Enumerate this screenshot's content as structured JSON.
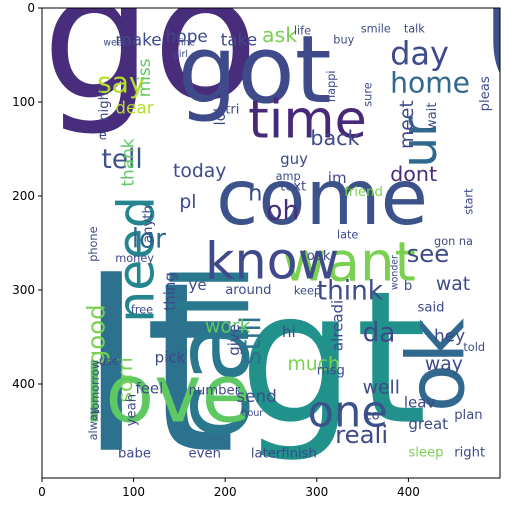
{
  "chart_data": {
    "type": "wordcloud",
    "title": "",
    "xlabel": "",
    "ylabel": "",
    "xlim": [
      0,
      500
    ],
    "ylim": [
      500,
      0
    ],
    "x_ticks": [
      0,
      100,
      200,
      300,
      400
    ],
    "y_ticks": [
      0,
      100,
      200,
      300,
      400
    ],
    "background": "#ffffff",
    "palette": "viridis",
    "words": [
      {
        "text": "u",
        "x": 470,
        "y": 90,
        "size": 260,
        "color": "#3b528b",
        "rotate": 0
      },
      {
        "text": "go",
        "x": 0,
        "y": 95,
        "size": 185,
        "color": "#472d7b",
        "rotate": 0
      },
      {
        "text": "lt",
        "x": 40,
        "y": 470,
        "size": 250,
        "color": "#2c718e",
        "rotate": 0
      },
      {
        "text": "gt",
        "x": 215,
        "y": 440,
        "size": 195,
        "color": "#21918c",
        "rotate": 0
      },
      {
        "text": "call",
        "x": 225,
        "y": 460,
        "size": 110,
        "color": "#2a788e",
        "rotate": -90
      },
      {
        "text": "got",
        "x": 148,
        "y": 100,
        "size": 100,
        "color": "#3e4a89",
        "rotate": 0
      },
      {
        "text": "come",
        "x": 190,
        "y": 230,
        "size": 82,
        "color": "#3b528b",
        "rotate": 0
      },
      {
        "text": "love",
        "x": 45,
        "y": 440,
        "size": 85,
        "color": "#5ec962",
        "rotate": 0
      },
      {
        "text": "want",
        "x": 262,
        "y": 290,
        "size": 58,
        "color": "#7ad151",
        "rotate": 0
      },
      {
        "text": "ok",
        "x": 460,
        "y": 430,
        "size": 84,
        "color": "#31688e",
        "rotate": -90
      },
      {
        "text": "know",
        "x": 178,
        "y": 288,
        "size": 54,
        "color": "#3e4a89",
        "rotate": 0
      },
      {
        "text": "time",
        "x": 225,
        "y": 138,
        "size": 56,
        "color": "#482878",
        "rotate": 0
      },
      {
        "text": "need",
        "x": 122,
        "y": 335,
        "size": 54,
        "color": "#25858e",
        "rotate": -90
      },
      {
        "text": "one",
        "x": 290,
        "y": 445,
        "size": 46,
        "color": "#3b528b",
        "rotate": 0
      },
      {
        "text": "ur",
        "x": 430,
        "y": 170,
        "size": 52,
        "color": "#31688e",
        "rotate": -90
      },
      {
        "text": "day",
        "x": 380,
        "y": 60,
        "size": 34,
        "color": "#3e4a89",
        "rotate": 0
      },
      {
        "text": "home",
        "x": 380,
        "y": 90,
        "size": 30,
        "color": "#31688e",
        "rotate": 0
      },
      {
        "text": "say",
        "x": 60,
        "y": 90,
        "size": 30,
        "color": "#b5de2b",
        "rotate": 0
      },
      {
        "text": "tell",
        "x": 65,
        "y": 170,
        "size": 28,
        "color": "#3b528b",
        "rotate": 0
      },
      {
        "text": "think",
        "x": 300,
        "y": 310,
        "size": 28,
        "color": "#3e4a89",
        "rotate": 0
      },
      {
        "text": "see",
        "x": 398,
        "y": 270,
        "size": 26,
        "color": "#3e4a89",
        "rotate": 0
      },
      {
        "text": "lor",
        "x": 98,
        "y": 255,
        "size": 28,
        "color": "#31688e",
        "rotate": 0
      },
      {
        "text": "oh",
        "x": 245,
        "y": 225,
        "size": 28,
        "color": "#472d7b",
        "rotate": 0
      },
      {
        "text": "still",
        "x": 238,
        "y": 380,
        "size": 30,
        "color": "#2c718e",
        "rotate": -90
      },
      {
        "text": "da",
        "x": 350,
        "y": 355,
        "size": 28,
        "color": "#3e4a89",
        "rotate": 0
      },
      {
        "text": "good",
        "x": 68,
        "y": 380,
        "size": 26,
        "color": "#7ad151",
        "rotate": -90
      },
      {
        "text": "reali",
        "x": 320,
        "y": 463,
        "size": 26,
        "color": "#3e4a89",
        "rotate": 0
      },
      {
        "text": "sorri",
        "x": 98,
        "y": 420,
        "size": 22,
        "color": "#7ad151",
        "rotate": -90
      },
      {
        "text": "back",
        "x": 293,
        "y": 146,
        "size": 22,
        "color": "#3e4a89",
        "rotate": 0
      },
      {
        "text": "today",
        "x": 143,
        "y": 180,
        "size": 20,
        "color": "#3e4a89",
        "rotate": 0
      },
      {
        "text": "dont",
        "x": 380,
        "y": 184,
        "size": 22,
        "color": "#472d7b",
        "rotate": 0
      },
      {
        "text": "meet",
        "x": 405,
        "y": 150,
        "size": 20,
        "color": "#3e4a89",
        "rotate": -90
      },
      {
        "text": "work",
        "x": 178,
        "y": 345,
        "size": 20,
        "color": "#5ec962",
        "rotate": 0
      },
      {
        "text": "much",
        "x": 268,
        "y": 385,
        "size": 20,
        "color": "#7ad151",
        "rotate": 0
      },
      {
        "text": "well",
        "x": 350,
        "y": 410,
        "size": 20,
        "color": "#3e4a89",
        "rotate": 0
      },
      {
        "text": "way",
        "x": 418,
        "y": 385,
        "size": 20,
        "color": "#3e4a89",
        "rotate": 0
      },
      {
        "text": "hey",
        "x": 428,
        "y": 355,
        "size": 18,
        "color": "#3e4a89",
        "rotate": 0
      },
      {
        "text": "wat",
        "x": 430,
        "y": 300,
        "size": 20,
        "color": "#3e4a89",
        "rotate": 0
      },
      {
        "text": "ask",
        "x": 240,
        "y": 36,
        "size": 22,
        "color": "#7ad151",
        "rotate": 0
      },
      {
        "text": "make",
        "x": 80,
        "y": 40,
        "size": 18,
        "color": "#3e4a89",
        "rotate": 0
      },
      {
        "text": "hope",
        "x": 135,
        "y": 36,
        "size": 18,
        "color": "#3e4a89",
        "rotate": 0
      },
      {
        "text": "take",
        "x": 195,
        "y": 40,
        "size": 18,
        "color": "#3e4a89",
        "rotate": 0
      },
      {
        "text": "miss",
        "x": 118,
        "y": 95,
        "size": 18,
        "color": "#5ec962",
        "rotate": -90
      },
      {
        "text": "dear",
        "x": 80,
        "y": 112,
        "size": 18,
        "color": "#b5de2b",
        "rotate": 0
      },
      {
        "text": "night",
        "x": 72,
        "y": 120,
        "size": 14,
        "color": "#3e4a89",
        "rotate": -90
      },
      {
        "text": "thank",
        "x": 100,
        "y": 190,
        "size": 18,
        "color": "#5ec962",
        "rotate": -90
      },
      {
        "text": "send",
        "x": 212,
        "y": 419,
        "size": 18,
        "color": "#3e4a89",
        "rotate": 0
      },
      {
        "text": "give",
        "x": 215,
        "y": 370,
        "size": 16,
        "color": "#3e4a89",
        "rotate": -90
      },
      {
        "text": "pick",
        "x": 123,
        "y": 377,
        "size": 16,
        "color": "#3e4a89",
        "rotate": 0
      },
      {
        "text": "feel",
        "x": 102,
        "y": 410,
        "size": 16,
        "color": "#3e4a89",
        "rotate": 0
      },
      {
        "text": "number",
        "x": 160,
        "y": 411,
        "size": 14,
        "color": "#3e4a89",
        "rotate": 0
      },
      {
        "text": "yeah",
        "x": 102,
        "y": 445,
        "size": 14,
        "color": "#3e4a89",
        "rotate": -90
      },
      {
        "text": "babe",
        "x": 83,
        "y": 478,
        "size": 14,
        "color": "#3e4a89",
        "rotate": 0
      },
      {
        "text": "even",
        "x": 160,
        "y": 478,
        "size": 14,
        "color": "#3e4a89",
        "rotate": 0
      },
      {
        "text": "laterfinish",
        "x": 228,
        "y": 478,
        "size": 14,
        "color": "#3e4a89",
        "rotate": 0
      },
      {
        "text": "sleep",
        "x": 400,
        "y": 477,
        "size": 14,
        "color": "#7ad151",
        "rotate": 0
      },
      {
        "text": "right",
        "x": 450,
        "y": 477,
        "size": 14,
        "color": "#3e4a89",
        "rotate": 0
      },
      {
        "text": "great",
        "x": 400,
        "y": 448,
        "size": 16,
        "color": "#3e4a89",
        "rotate": 0
      },
      {
        "text": "plan",
        "x": 450,
        "y": 437,
        "size": 14,
        "color": "#3e4a89",
        "rotate": 0
      },
      {
        "text": "leav",
        "x": 395,
        "y": 425,
        "size": 16,
        "color": "#3e4a89",
        "rotate": 0
      },
      {
        "text": "msg",
        "x": 300,
        "y": 390,
        "size": 14,
        "color": "#3e4a89",
        "rotate": 0
      },
      {
        "text": "hi",
        "x": 262,
        "y": 350,
        "size": 16,
        "color": "#3e4a89",
        "rotate": 0
      },
      {
        "text": "alreadi",
        "x": 328,
        "y": 365,
        "size": 16,
        "color": "#3e4a89",
        "rotate": -90
      },
      {
        "text": "thing",
        "x": 145,
        "y": 322,
        "size": 16,
        "color": "#3e4a89",
        "rotate": -90
      },
      {
        "text": "ye",
        "x": 160,
        "y": 300,
        "size": 16,
        "color": "#3e4a89",
        "rotate": 0
      },
      {
        "text": "lol",
        "x": 200,
        "y": 125,
        "size": 16,
        "color": "#3e4a89",
        "rotate": -90
      },
      {
        "text": "tri",
        "x": 200,
        "y": 112,
        "size": 14,
        "color": "#3e4a89",
        "rotate": 0
      },
      {
        "text": "guy",
        "x": 260,
        "y": 166,
        "size": 16,
        "color": "#3e4a89",
        "rotate": 0
      },
      {
        "text": "im",
        "x": 312,
        "y": 186,
        "size": 16,
        "color": "#3e4a89",
        "rotate": 0
      },
      {
        "text": "friend",
        "x": 330,
        "y": 200,
        "size": 14,
        "color": "#7ad151",
        "rotate": 0
      },
      {
        "text": "text",
        "x": 260,
        "y": 194,
        "size": 14,
        "color": "#3e4a89",
        "rotate": 0
      },
      {
        "text": "pl",
        "x": 150,
        "y": 213,
        "size": 20,
        "color": "#3e4a89",
        "rotate": 0
      },
      {
        "text": "anyth",
        "x": 120,
        "y": 250,
        "size": 14,
        "color": "#3e4a89",
        "rotate": -90
      },
      {
        "text": "money",
        "x": 80,
        "y": 270,
        "size": 12,
        "color": "#3e4a89",
        "rotate": 0
      },
      {
        "text": "phone",
        "x": 60,
        "y": 270,
        "size": 12,
        "color": "#3e4a89",
        "rotate": -90
      },
      {
        "text": "around",
        "x": 200,
        "y": 304,
        "size": 14,
        "color": "#3e4a89",
        "rotate": 0
      },
      {
        "text": "look",
        "x": 285,
        "y": 268,
        "size": 14,
        "color": "#3e4a89",
        "rotate": 0
      },
      {
        "text": "keep",
        "x": 275,
        "y": 305,
        "size": 12,
        "color": "#3e4a89",
        "rotate": 0
      },
      {
        "text": "late",
        "x": 322,
        "y": 245,
        "size": 12,
        "color": "#3e4a89",
        "rotate": 0
      },
      {
        "text": "said",
        "x": 410,
        "y": 323,
        "size": 14,
        "color": "#3e4a89",
        "rotate": 0
      },
      {
        "text": "told",
        "x": 460,
        "y": 365,
        "size": 12,
        "color": "#3e4a89",
        "rotate": 0
      },
      {
        "text": "gon na",
        "x": 428,
        "y": 252,
        "size": 12,
        "color": "#3e4a89",
        "rotate": 0
      },
      {
        "text": "wait",
        "x": 430,
        "y": 130,
        "size": 14,
        "color": "#3e4a89",
        "rotate": -90
      },
      {
        "text": "pleas",
        "x": 488,
        "y": 110,
        "size": 14,
        "color": "#3e4a89",
        "rotate": -90
      },
      {
        "text": "start",
        "x": 470,
        "y": 220,
        "size": 12,
        "color": "#3e4a89",
        "rotate": -90
      },
      {
        "text": "buy",
        "x": 318,
        "y": 38,
        "size": 12,
        "color": "#3e4a89",
        "rotate": 0
      },
      {
        "text": "smile",
        "x": 348,
        "y": 26,
        "size": 12,
        "color": "#3e4a89",
        "rotate": 0
      },
      {
        "text": "talk",
        "x": 395,
        "y": 26,
        "size": 12,
        "color": "#3e4a89",
        "rotate": 0
      },
      {
        "text": "sure",
        "x": 360,
        "y": 105,
        "size": 12,
        "color": "#3e4a89",
        "rotate": -90
      },
      {
        "text": "happi",
        "x": 320,
        "y": 100,
        "size": 12,
        "color": "#3e4a89",
        "rotate": -90
      },
      {
        "text": "life",
        "x": 275,
        "y": 28,
        "size": 12,
        "color": "#3e4a89",
        "rotate": 0
      },
      {
        "text": "amp",
        "x": 255,
        "y": 183,
        "size": 12,
        "color": "#3e4a89",
        "rotate": 0
      },
      {
        "text": "hour",
        "x": 218,
        "y": 434,
        "size": 10,
        "color": "#3e4a89",
        "rotate": 0
      },
      {
        "text": "tomorrow",
        "x": 62,
        "y": 432,
        "size": 12,
        "color": "#3e4a89",
        "rotate": -90
      },
      {
        "text": "alway",
        "x": 60,
        "y": 460,
        "size": 12,
        "color": "#3e4a89",
        "rotate": -90
      },
      {
        "text": "use",
        "x": 62,
        "y": 380,
        "size": 12,
        "color": "#3e4a89",
        "rotate": 0
      },
      {
        "text": "free",
        "x": 97,
        "y": 325,
        "size": 12,
        "color": "#3e4a89",
        "rotate": 0
      },
      {
        "text": "e",
        "x": 62,
        "y": 140,
        "size": 14,
        "color": "#3e4a89",
        "rotate": 0
      },
      {
        "text": "n",
        "x": 225,
        "y": 205,
        "size": 24,
        "color": "#3e4a89",
        "rotate": 0
      },
      {
        "text": "co",
        "x": 352,
        "y": 438,
        "size": 14,
        "color": "#3e4a89",
        "rotate": 0
      },
      {
        "text": "b",
        "x": 395,
        "y": 300,
        "size": 14,
        "color": "#3e4a89",
        "rotate": 0
      },
      {
        "text": "wonder",
        "x": 388,
        "y": 300,
        "size": 10,
        "color": "#3e4a89",
        "rotate": -90
      },
      {
        "text": "fine",
        "x": 148,
        "y": 40,
        "size": 10,
        "color": "#3e4a89",
        "rotate": 0
      },
      {
        "text": "girl",
        "x": 143,
        "y": 52,
        "size": 10,
        "color": "#3e4a89",
        "rotate": 0
      },
      {
        "text": "week",
        "x": 67,
        "y": 40,
        "size": 10,
        "color": "#3e4a89",
        "rotate": 0
      }
    ]
  }
}
